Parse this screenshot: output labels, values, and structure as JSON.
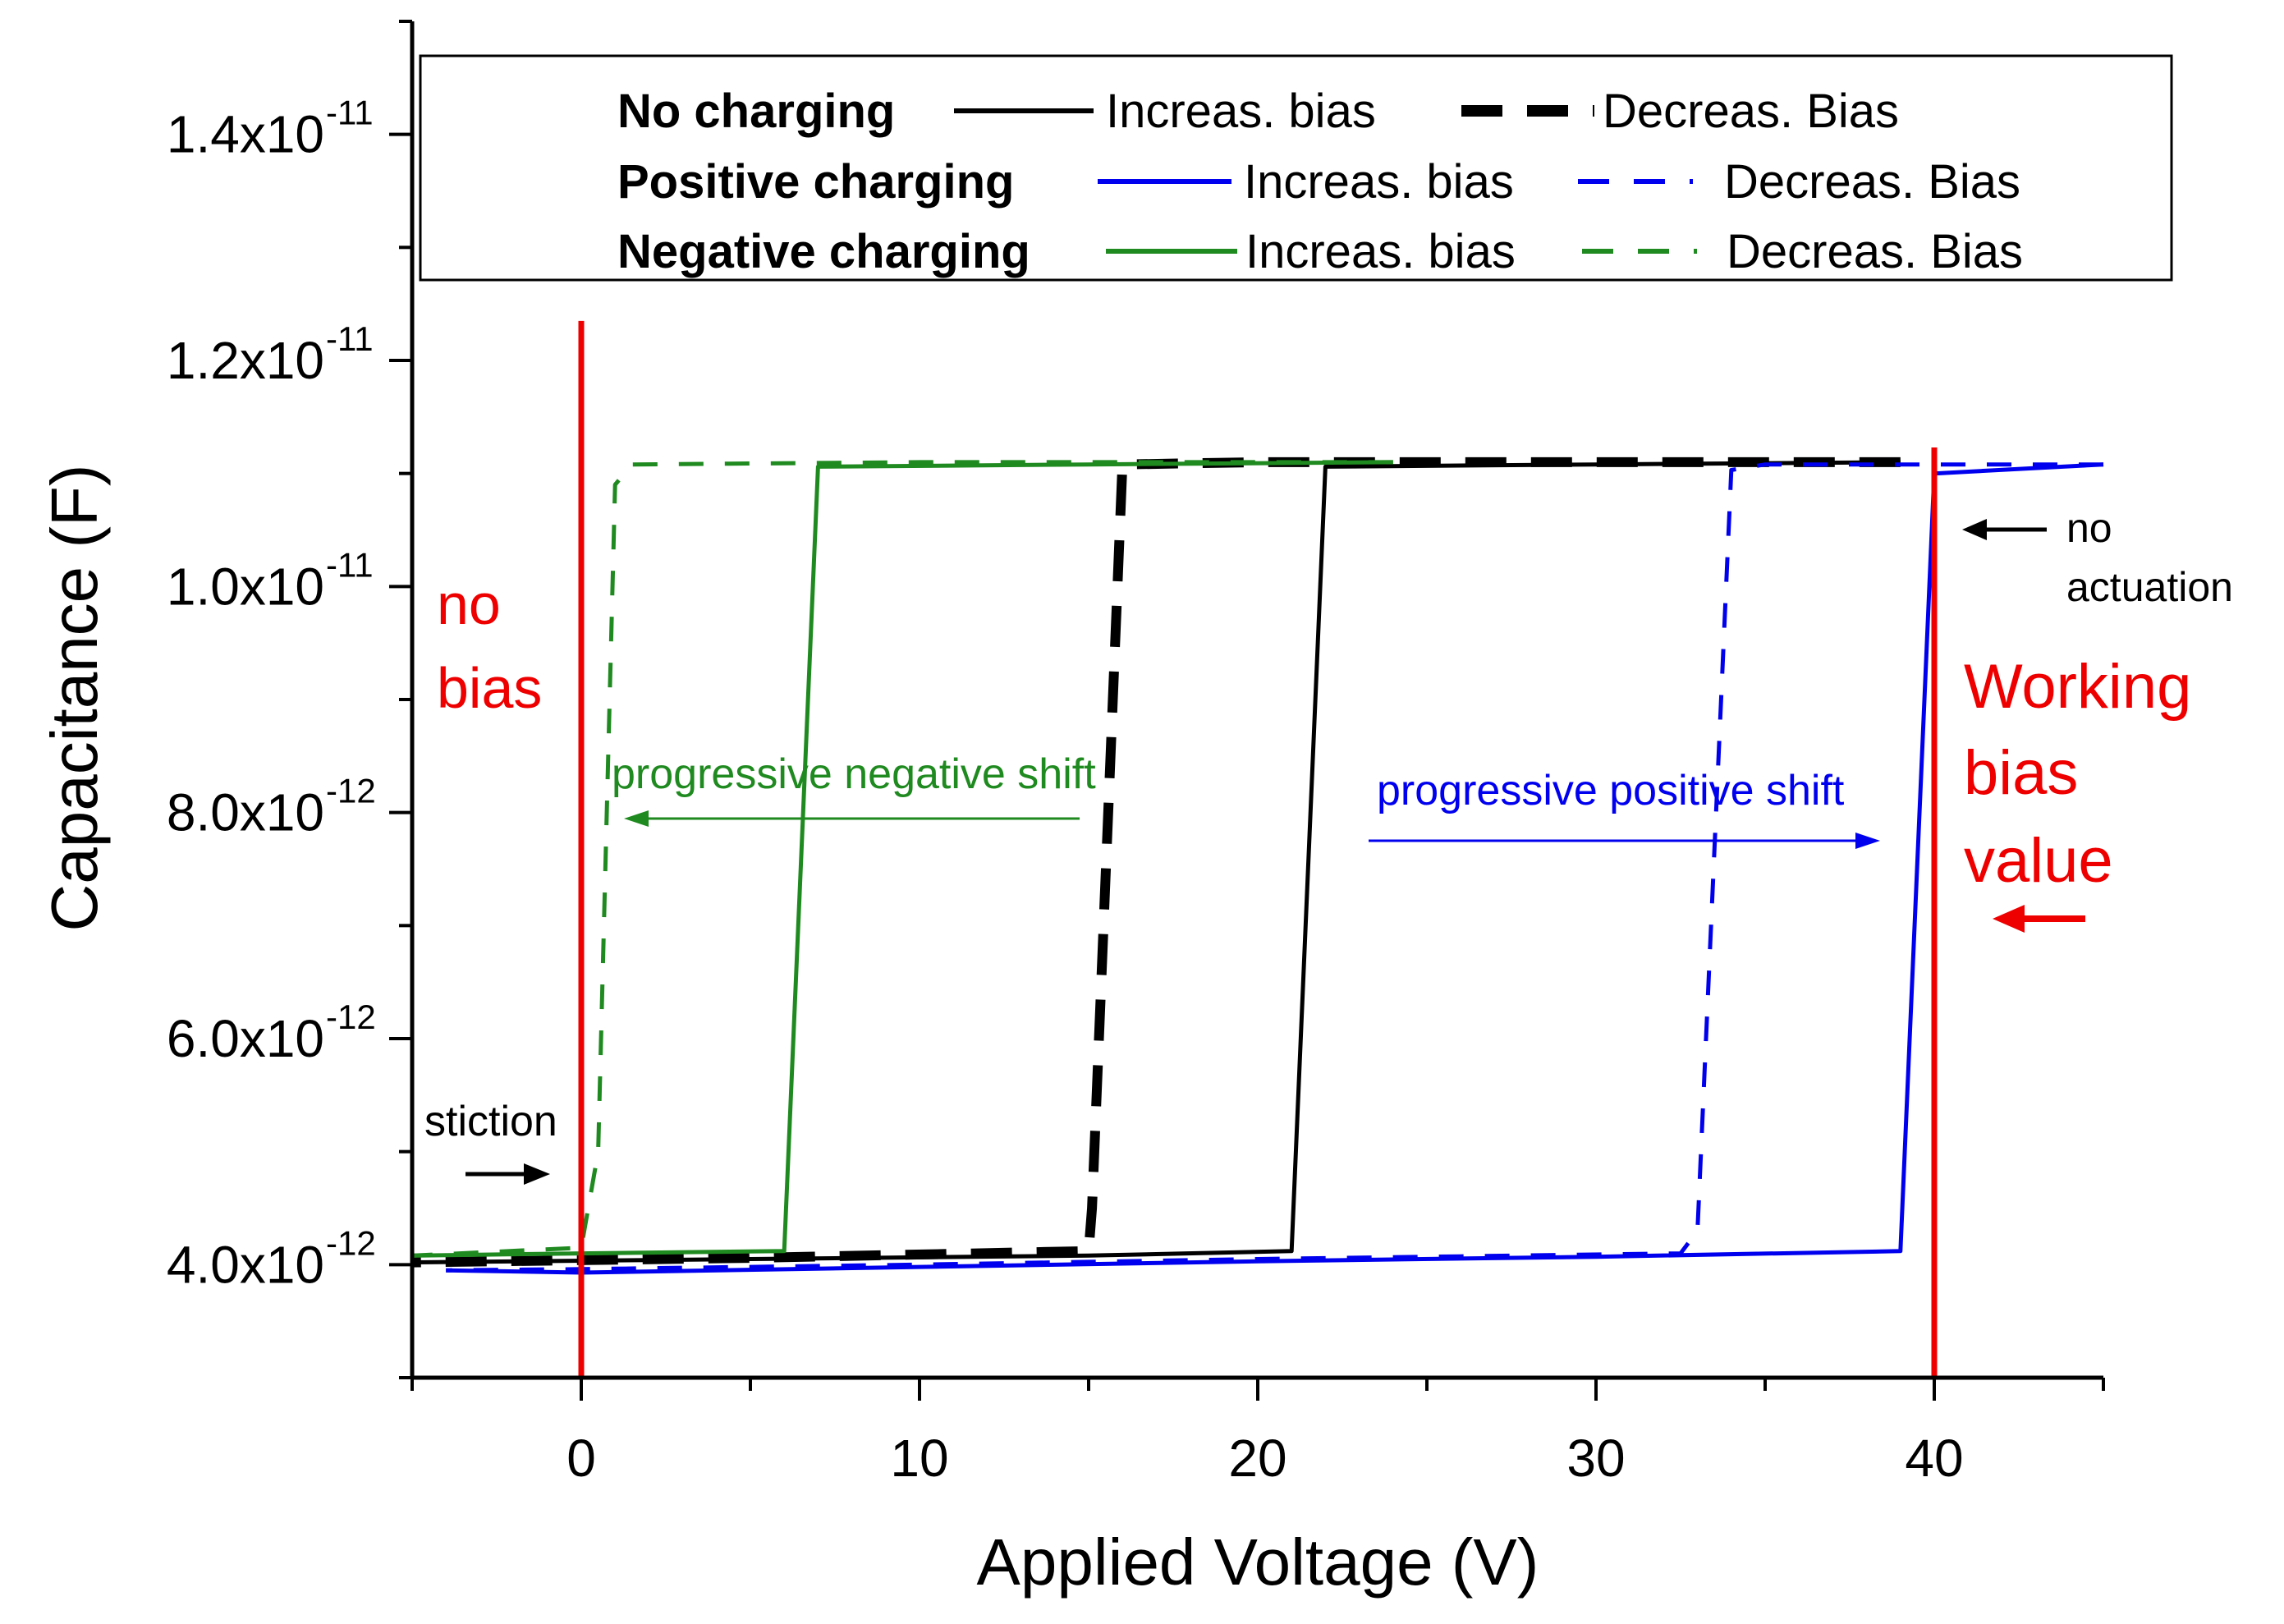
{
  "chart_data": {
    "type": "line",
    "xlabel": "Applied Voltage (V)",
    "ylabel": "Capacitance (F)",
    "xlim": [
      -5,
      45
    ],
    "ylim": [
      3e-12,
      1.5e-11
    ],
    "x_ticks": [
      0,
      10,
      20,
      30,
      40
    ],
    "x_tick_labels": [
      "0",
      "10",
      "20",
      "30",
      "40"
    ],
    "y_ticks": [
      4e-12,
      6e-12,
      8e-12,
      1e-11,
      1.2e-11,
      1.4e-11
    ],
    "y_tick_labels": [
      {
        "mantissa": "4.0x10",
        "exp": "-12"
      },
      {
        "mantissa": "6.0x10",
        "exp": "-12"
      },
      {
        "mantissa": "8.0x10",
        "exp": "-12"
      },
      {
        "mantissa": "1.0x10",
        "exp": "-11"
      },
      {
        "mantissa": "1.2x10",
        "exp": "-11"
      },
      {
        "mantissa": "1.4x10",
        "exp": "-11"
      }
    ],
    "grid": false,
    "legend_position": "top",
    "legend": {
      "groups": [
        {
          "label": "No charging",
          "increasing": "Increas. bias",
          "decreasing": "Decreas. Bias"
        },
        {
          "label": "Positive charging",
          "increasing": "Increas. bias",
          "decreasing": "Decreas. Bias"
        },
        {
          "label": "Negative charging",
          "increasing": "Increas. bias",
          "decreasing": "Decreas. Bias"
        }
      ]
    },
    "series": [
      {
        "group": 0,
        "direction": "increasing",
        "color": "#000000",
        "dash": "solid",
        "points": [
          [
            -5,
            4.02e-12
          ],
          [
            5,
            4.05e-12
          ],
          [
            15,
            4.08e-12
          ],
          [
            21,
            4.12e-12
          ],
          [
            22,
            1.106e-11
          ],
          [
            30,
            1.108e-11
          ],
          [
            39,
            1.11e-11
          ]
        ]
      },
      {
        "group": 0,
        "direction": "decreasing",
        "color": "#000000",
        "dash": "heavy",
        "points": [
          [
            39,
            1.11e-11
          ],
          [
            30,
            1.11e-11
          ],
          [
            20,
            1.11e-11
          ],
          [
            16,
            1.108e-11
          ],
          [
            15.1,
            4.5e-12
          ],
          [
            15,
            4.12e-12
          ],
          [
            5,
            4.06e-12
          ],
          [
            -5,
            4.02e-12
          ]
        ]
      },
      {
        "group": 1,
        "direction": "increasing",
        "color": "#0000ee",
        "dash": "solid",
        "points": [
          [
            -4,
            3.95e-12
          ],
          [
            0,
            3.93e-12
          ],
          [
            10,
            3.98e-12
          ],
          [
            20,
            4.03e-12
          ],
          [
            30,
            4.07e-12
          ],
          [
            39,
            4.12e-12
          ],
          [
            40,
            1.1e-11
          ],
          [
            45,
            1.108e-11
          ]
        ]
      },
      {
        "group": 1,
        "direction": "decreasing",
        "color": "#0000ee",
        "dash": "dashed",
        "points": [
          [
            45,
            1.108e-11
          ],
          [
            35,
            1.108e-11
          ],
          [
            34,
            1.103e-11
          ],
          [
            33,
            4.3e-12
          ],
          [
            32.5,
            4.1e-12
          ],
          [
            20,
            4.05e-12
          ],
          [
            10,
            4e-12
          ],
          [
            0,
            3.96e-12
          ],
          [
            -4,
            3.95e-12
          ]
        ]
      },
      {
        "group": 2,
        "direction": "increasing",
        "color": "#1f8a1f",
        "dash": "solid",
        "points": [
          [
            -5,
            4.08e-12
          ],
          [
            0,
            4.1e-12
          ],
          [
            6,
            4.12e-12
          ],
          [
            7,
            1.106e-11
          ],
          [
            15,
            1.108e-11
          ],
          [
            24,
            1.11e-11
          ]
        ]
      },
      {
        "group": 2,
        "direction": "decreasing",
        "color": "#1f8a1f",
        "dash": "dashed",
        "points": [
          [
            24,
            1.11e-11
          ],
          [
            10,
            1.11e-11
          ],
          [
            1.5,
            1.108e-11
          ],
          [
            1,
            1.09e-11
          ],
          [
            0.5,
            5e-12
          ],
          [
            0,
            4.15e-12
          ],
          [
            -5,
            4.08e-12
          ]
        ]
      }
    ],
    "reference_lines": [
      {
        "x": 0,
        "color": "#ee0000",
        "y_range": [
          3e-12,
          1.235e-11
        ]
      },
      {
        "x": 40,
        "color": "#ee0000",
        "y_range": [
          3e-12,
          1.123e-11
        ]
      }
    ],
    "annotations": [
      {
        "kind": "red",
        "lines": [
          "no",
          "bias"
        ]
      },
      {
        "kind": "red",
        "lines": [
          "Working",
          "bias",
          "value"
        ]
      },
      {
        "kind": "small",
        "lines": [
          "no",
          "actuation"
        ]
      },
      {
        "kind": "small",
        "lines": [
          "stiction"
        ]
      },
      {
        "kind": "green",
        "lines": [
          "progressive negative shift"
        ]
      },
      {
        "kind": "blue",
        "lines": [
          "progressive positive shift"
        ]
      }
    ],
    "colors": {
      "no_charging": "#000000",
      "positive_charging": "#0000ee",
      "negative_charging": "#1f8a1f",
      "reference": "#ee0000"
    }
  }
}
